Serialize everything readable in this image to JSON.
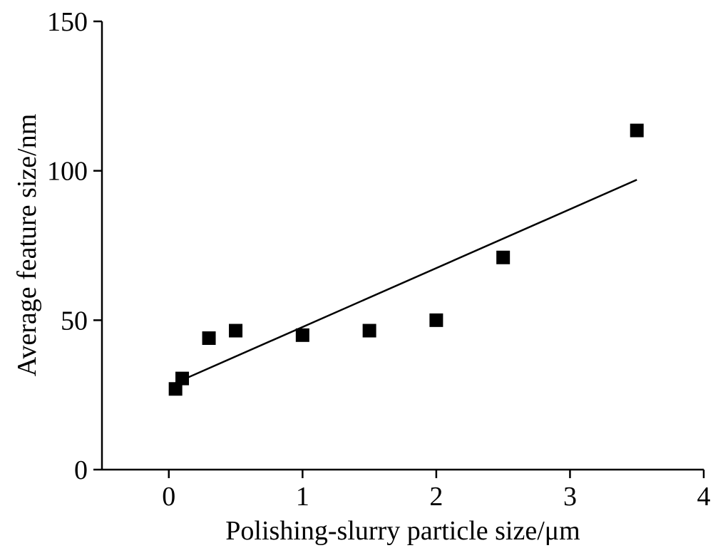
{
  "chart_data": {
    "type": "scatter",
    "title": "",
    "xlabel": "Polishing-slurry particle size/μm",
    "ylabel": "Average feature size/nm",
    "xlim": [
      -0.5,
      4
    ],
    "ylim": [
      0,
      150
    ],
    "x_ticks": [
      0,
      1,
      2,
      3,
      4
    ],
    "y_ticks": [
      0,
      50,
      100,
      150
    ],
    "x_tick_labels": [
      "0",
      "1",
      "2",
      "3",
      "4"
    ],
    "y_tick_labels": [
      "0",
      "50",
      "100",
      "150"
    ],
    "grid": false,
    "legend": "none",
    "series": [
      {
        "x": [
          0.05,
          0.1,
          0.3,
          0.5,
          1.0,
          1.5,
          2.0,
          2.5,
          3.5
        ],
        "y": [
          27,
          30.5,
          44,
          46.5,
          45,
          46.5,
          50,
          71,
          113.5
        ],
        "marker": "square",
        "color": "#000000"
      }
    ],
    "fit_line": {
      "x": [
        0.05,
        3.5
      ],
      "y": [
        29,
        97
      ],
      "color": "#000000"
    }
  }
}
